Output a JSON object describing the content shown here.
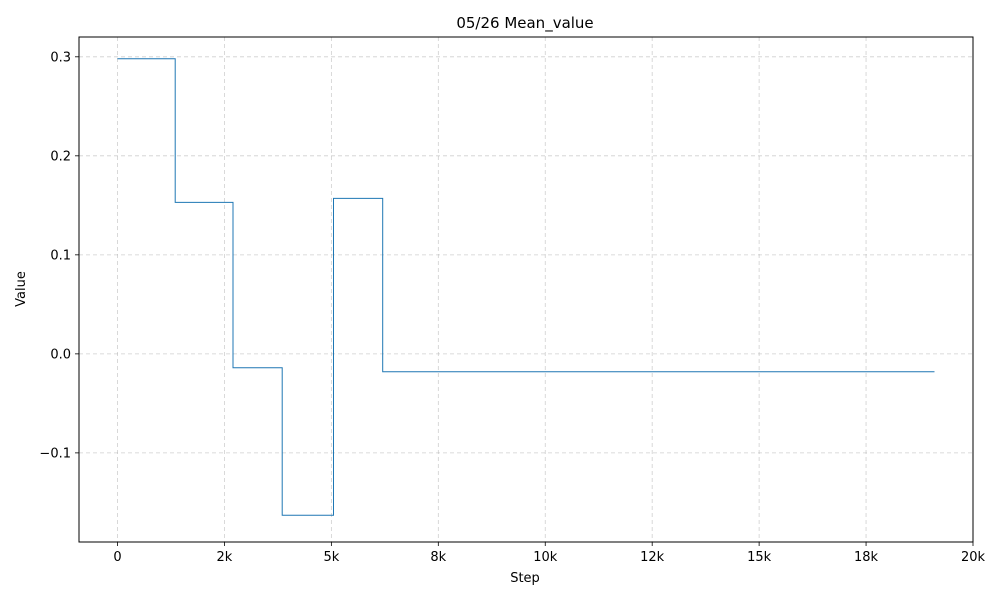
{
  "chart_data": {
    "type": "line",
    "title": "05/26  Mean_value",
    "xlabel": "Step",
    "ylabel": "Value",
    "xlim": [
      -900,
      20000
    ],
    "ylim": [
      -0.19,
      0.32
    ],
    "xticks": [
      0,
      2500,
      5000,
      7500,
      10000,
      12500,
      15000,
      17500,
      20000
    ],
    "xtick_labels": [
      "0",
      "2k",
      "5k",
      "8k",
      "10k",
      "12k",
      "15k",
      "18k",
      "20k"
    ],
    "yticks": [
      -0.1,
      0.0,
      0.1,
      0.2,
      0.3
    ],
    "ytick_labels": [
      "−0.1",
      "0.0",
      "0.1",
      "0.2",
      "0.3"
    ],
    "grid": true,
    "color": "#1f77b4",
    "series": [
      {
        "x": [
          0,
          1350,
          1350,
          2700,
          2700,
          3850,
          3850,
          5050,
          5050,
          6200,
          6200,
          19100
        ],
        "y": [
          0.298,
          0.298,
          0.153,
          0.153,
          -0.014,
          -0.014,
          -0.163,
          -0.163,
          0.157,
          0.157,
          -0.018,
          -0.018
        ]
      }
    ]
  }
}
